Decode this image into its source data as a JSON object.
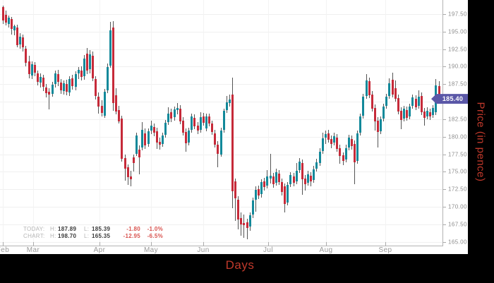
{
  "window": {
    "background": "#000000",
    "panel_background": "#ffffff"
  },
  "axis_titles": {
    "x": "Days",
    "y": "Price (in pence)",
    "color": "#c0392b"
  },
  "price_tag": {
    "value": "185.40",
    "numeric": 185.4,
    "background": "#5a57a7",
    "text_color": "#ffffff"
  },
  "legend": {
    "label_color": "#b5b5b5",
    "value_color": "#3a3a3a",
    "negative_color": "#d9534f",
    "rows": [
      {
        "label": "TODAY:",
        "h_label": "H:",
        "high": "187.89",
        "l_label": "L:",
        "low": "185.39",
        "change": "-1.80",
        "change_pct": "-1.0%"
      },
      {
        "label": "CHART:",
        "h_label": "H:",
        "high": "198.70",
        "l_label": "L:",
        "low": "165.35",
        "change": "-12.95",
        "change_pct": "-6.5%"
      }
    ]
  },
  "chart_data": {
    "type": "candlestick",
    "title": "",
    "xlabel": "Days",
    "ylabel": "Price (in pence)",
    "grid": true,
    "ylim": [
      164.45,
      199.52
    ],
    "yticks": [
      {
        "value": 197.5,
        "label": "197.50"
      },
      {
        "value": 195.0,
        "label": "195.00"
      },
      {
        "value": 192.5,
        "label": "192.50"
      },
      {
        "value": 190.0,
        "label": "190.00"
      },
      {
        "value": 187.5,
        "label": "187.50"
      },
      {
        "value": 185.0,
        "label": "185.00"
      },
      {
        "value": 182.5,
        "label": "182.50"
      },
      {
        "value": 180.0,
        "label": "180.00"
      },
      {
        "value": 177.5,
        "label": "177.50"
      },
      {
        "value": 175.0,
        "label": "175.00"
      },
      {
        "value": 172.5,
        "label": "172.50"
      },
      {
        "value": 170.0,
        "label": "170.00"
      },
      {
        "value": 167.5,
        "label": "167.50"
      },
      {
        "value": 165.0,
        "label": "165.00"
      }
    ],
    "months": [
      {
        "label": "Feb",
        "x": 4
      },
      {
        "label": "Mar",
        "x": 47
      },
      {
        "label": "Apr",
        "x": 141
      },
      {
        "label": "May",
        "x": 214
      },
      {
        "label": "Jun",
        "x": 288
      },
      {
        "label": "Jul",
        "x": 380
      },
      {
        "label": "Aug",
        "x": 462
      },
      {
        "label": "Sep",
        "x": 546
      }
    ],
    "x0": 4,
    "dx": 4.12,
    "colors": {
      "up": "#12899a",
      "down": "#c62a39",
      "wick": "#545454"
    },
    "last_price": 185.4,
    "candles_format": [
      "open",
      "high",
      "low",
      "close"
    ],
    "candles": [
      [
        198.5,
        198.7,
        196.1,
        196.6
      ],
      [
        197.4,
        198.0,
        195.9,
        196.3
      ],
      [
        196.1,
        197.3,
        195.6,
        197.0
      ],
      [
        196.8,
        197.1,
        194.6,
        195.4
      ],
      [
        195.2,
        196.0,
        194.5,
        195.8
      ],
      [
        195.6,
        196.0,
        192.8,
        193.1
      ],
      [
        193.2,
        194.8,
        192.6,
        194.3
      ],
      [
        194.2,
        194.6,
        192.2,
        192.8
      ],
      [
        192.6,
        193.0,
        190.0,
        190.6
      ],
      [
        190.8,
        191.6,
        188.3,
        188.9
      ],
      [
        188.7,
        190.8,
        188.2,
        190.3
      ],
      [
        190.2,
        190.7,
        188.6,
        189.1
      ],
      [
        189.0,
        189.4,
        187.3,
        187.8
      ],
      [
        187.7,
        189.0,
        187.0,
        188.5
      ],
      [
        188.4,
        188.8,
        186.5,
        187.1
      ],
      [
        187.0,
        187.5,
        185.6,
        186.2
      ],
      [
        186.4,
        186.9,
        183.9,
        186.0
      ],
      [
        186.1,
        187.8,
        185.7,
        187.4
      ],
      [
        187.5,
        189.4,
        187.0,
        189.0
      ],
      [
        188.9,
        189.5,
        187.2,
        187.8
      ],
      [
        187.7,
        188.2,
        186.1,
        186.6
      ],
      [
        186.5,
        188.0,
        186.0,
        187.6
      ],
      [
        187.5,
        188.1,
        185.9,
        186.4
      ],
      [
        186.3,
        188.6,
        185.8,
        188.2
      ],
      [
        188.3,
        188.8,
        186.7,
        187.2
      ],
      [
        187.1,
        189.3,
        186.6,
        188.9
      ],
      [
        189.0,
        189.9,
        188.2,
        189.5
      ],
      [
        189.4,
        190.0,
        188.0,
        188.5
      ],
      [
        188.6,
        191.7,
        188.1,
        191.2
      ],
      [
        191.9,
        192.7,
        188.9,
        189.4
      ],
      [
        189.6,
        192.4,
        189.0,
        191.8
      ],
      [
        191.6,
        192.2,
        187.9,
        188.3
      ],
      [
        188.2,
        188.6,
        185.3,
        185.8
      ],
      [
        185.7,
        186.3,
        183.3,
        184.3
      ],
      [
        184.4,
        185.2,
        182.9,
        183.4
      ],
      [
        183.0,
        186.8,
        182.7,
        186.4
      ],
      [
        186.6,
        190.4,
        186.2,
        189.9
      ],
      [
        190.1,
        196.4,
        189.8,
        195.2
      ],
      [
        195.6,
        196.5,
        183.7,
        184.8
      ],
      [
        185.9,
        186.9,
        183.2,
        183.6
      ],
      [
        183.8,
        184.4,
        181.9,
        182.2
      ],
      [
        182.6,
        183.0,
        176.4,
        176.8
      ],
      [
        176.9,
        177.5,
        173.7,
        175.4
      ],
      [
        175.6,
        176.0,
        173.1,
        174.2
      ],
      [
        174.3,
        175.1,
        172.9,
        173.9
      ],
      [
        177.0,
        177.4,
        175.0,
        176.2
      ],
      [
        177.6,
        180.6,
        177.2,
        180.2
      ],
      [
        178.2,
        178.8,
        174.6,
        177.0
      ],
      [
        178.5,
        182.1,
        178.1,
        181.0
      ],
      [
        180.5,
        181.2,
        178.3,
        178.8
      ],
      [
        179.0,
        181.2,
        178.6,
        180.8
      ],
      [
        180.9,
        182.3,
        180.4,
        181.6
      ],
      [
        181.4,
        181.9,
        180.1,
        180.6
      ],
      [
        180.8,
        181.3,
        178.3,
        179.2
      ],
      [
        179.3,
        179.9,
        178.2,
        178.9
      ],
      [
        179.0,
        180.6,
        178.6,
        180.2
      ],
      [
        180.3,
        182.4,
        179.9,
        182.0
      ],
      [
        182.1,
        184.2,
        181.7,
        183.3
      ],
      [
        183.5,
        184.0,
        182.1,
        182.6
      ],
      [
        182.8,
        184.3,
        182.3,
        183.9
      ],
      [
        183.8,
        184.8,
        183.2,
        184.1
      ],
      [
        184.0,
        184.5,
        181.8,
        182.2
      ],
      [
        182.3,
        182.8,
        180.2,
        180.6
      ],
      [
        180.7,
        181.2,
        177.9,
        179.1
      ],
      [
        179.2,
        181.3,
        178.8,
        180.9
      ],
      [
        181.0,
        183.3,
        180.6,
        182.9
      ],
      [
        182.7,
        183.2,
        181.1,
        181.5
      ],
      [
        181.6,
        182.1,
        180.4,
        180.9
      ],
      [
        181.0,
        183.5,
        180.6,
        182.8
      ],
      [
        182.9,
        183.4,
        181.6,
        182.0
      ],
      [
        181.2,
        183.3,
        180.8,
        182.9
      ],
      [
        182.9,
        183.3,
        181.5,
        181.9
      ],
      [
        181.9,
        182.3,
        180.3,
        180.7
      ],
      [
        180.5,
        181.0,
        178.5,
        178.9
      ],
      [
        178.9,
        179.4,
        175.6,
        177.6
      ],
      [
        177.5,
        181.3,
        177.1,
        180.9
      ],
      [
        181.0,
        184.0,
        180.6,
        183.7
      ],
      [
        183.8,
        185.8,
        183.4,
        184.9
      ],
      [
        184.8,
        186.0,
        184.3,
        185.3
      ],
      [
        186.0,
        188.4,
        169.8,
        172.2
      ],
      [
        173.6,
        174.0,
        168.0,
        171.2
      ],
      [
        171.0,
        171.5,
        166.8,
        168.2
      ],
      [
        168.4,
        169.2,
        165.9,
        167.5
      ],
      [
        167.7,
        168.9,
        165.6,
        167.4
      ],
      [
        167.8,
        168.3,
        165.4,
        167.0
      ],
      [
        167.2,
        169.2,
        166.6,
        168.8
      ],
      [
        168.9,
        171.3,
        168.4,
        170.9
      ],
      [
        171.0,
        172.9,
        169.3,
        172.4
      ],
      [
        172.5,
        173.0,
        171.1,
        171.6
      ],
      [
        171.8,
        173.9,
        171.3,
        173.5
      ],
      [
        173.6,
        174.1,
        172.3,
        172.8
      ],
      [
        173.0,
        175.2,
        172.6,
        174.3
      ],
      [
        174.0,
        177.6,
        173.3,
        174.4
      ],
      [
        174.3,
        174.8,
        172.7,
        173.2
      ],
      [
        173.4,
        175.4,
        173.0,
        174.9
      ],
      [
        174.7,
        175.2,
        173.1,
        173.5
      ],
      [
        173.5,
        174.0,
        171.6,
        172.1
      ],
      [
        172.9,
        173.3,
        169.2,
        170.4
      ],
      [
        170.6,
        173.5,
        170.2,
        173.1
      ],
      [
        173.2,
        174.9,
        172.8,
        174.5
      ],
      [
        174.3,
        174.8,
        172.9,
        173.4
      ],
      [
        173.6,
        176.2,
        173.2,
        175.1
      ],
      [
        175.2,
        176.9,
        174.8,
        176.4
      ],
      [
        176.2,
        176.7,
        171.7,
        173.9
      ],
      [
        174.0,
        174.5,
        172.3,
        173.2
      ],
      [
        173.4,
        175.1,
        173.0,
        174.6
      ],
      [
        174.4,
        174.9,
        172.9,
        173.6
      ],
      [
        173.8,
        175.8,
        173.4,
        175.3
      ],
      [
        175.4,
        176.8,
        175.0,
        176.3
      ],
      [
        176.2,
        178.4,
        175.8,
        177.9
      ],
      [
        178.0,
        180.6,
        177.6,
        179.8
      ],
      [
        179.9,
        180.9,
        179.0,
        180.4
      ],
      [
        180.5,
        181.0,
        179.2,
        179.6
      ],
      [
        179.7,
        180.2,
        178.4,
        179.0
      ],
      [
        179.2,
        180.6,
        178.8,
        180.1
      ],
      [
        179.9,
        180.4,
        177.9,
        178.3
      ],
      [
        178.4,
        178.9,
        176.1,
        177.2
      ],
      [
        177.3,
        177.8,
        175.9,
        176.5
      ],
      [
        176.7,
        178.9,
        176.3,
        178.4
      ],
      [
        178.5,
        180.3,
        178.1,
        179.9
      ],
      [
        179.7,
        180.2,
        178.2,
        178.7
      ],
      [
        179.0,
        179.5,
        173.2,
        176.3
      ],
      [
        176.5,
        180.9,
        176.1,
        180.5
      ],
      [
        180.6,
        183.3,
        180.2,
        182.9
      ],
      [
        183.0,
        186.1,
        182.6,
        185.7
      ],
      [
        185.8,
        188.9,
        185.4,
        188.0
      ],
      [
        187.9,
        188.4,
        185.5,
        185.9
      ],
      [
        186.0,
        186.5,
        183.6,
        184.0
      ],
      [
        184.1,
        184.6,
        180.9,
        182.2
      ],
      [
        182.3,
        182.8,
        178.5,
        180.7
      ],
      [
        180.8,
        182.9,
        180.4,
        182.5
      ],
      [
        182.6,
        184.7,
        182.2,
        184.3
      ],
      [
        184.4,
        186.1,
        184.0,
        185.7
      ],
      [
        185.8,
        188.3,
        185.4,
        187.6
      ],
      [
        188.1,
        189.1,
        185.6,
        186.0
      ],
      [
        186.9,
        188.0,
        185.0,
        185.4
      ],
      [
        185.5,
        186.0,
        183.2,
        183.6
      ],
      [
        183.7,
        184.2,
        181.1,
        182.4
      ],
      [
        182.6,
        184.4,
        182.2,
        184.0
      ],
      [
        183.8,
        184.3,
        182.3,
        182.7
      ],
      [
        182.9,
        184.7,
        182.5,
        184.3
      ],
      [
        184.4,
        186.0,
        184.0,
        185.6
      ],
      [
        185.4,
        185.9,
        183.8,
        184.2
      ],
      [
        184.4,
        186.6,
        184.0,
        185.7
      ],
      [
        185.8,
        186.3,
        183.1,
        183.5
      ],
      [
        183.6,
        184.1,
        181.6,
        182.7
      ],
      [
        182.9,
        184.2,
        182.5,
        183.7
      ],
      [
        183.5,
        184.0,
        182.4,
        182.9
      ],
      [
        183.1,
        184.5,
        182.7,
        184.1
      ],
      [
        183.5,
        188.2,
        183.1,
        187.3
      ],
      [
        187.2,
        187.9,
        185.4,
        185.4
      ]
    ]
  }
}
